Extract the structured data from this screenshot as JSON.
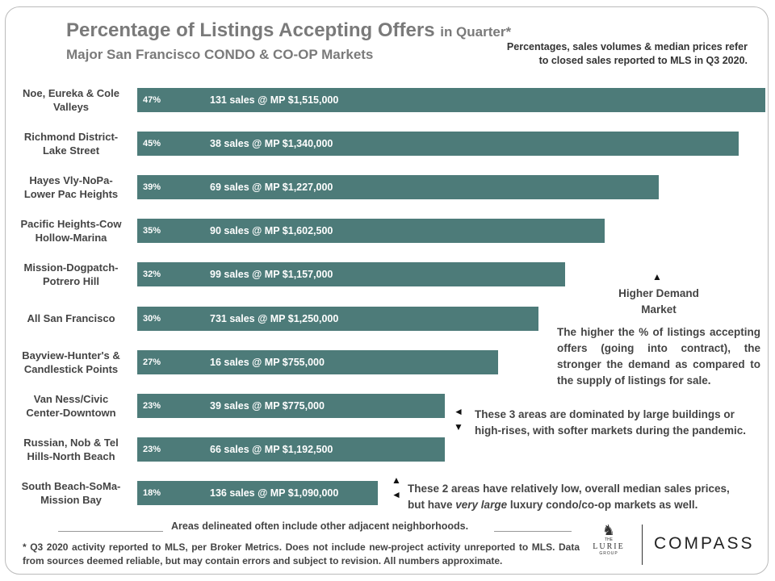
{
  "chart_data": {
    "type": "bar",
    "orientation": "horizontal",
    "title": "Percentage of Listings Accepting Offers",
    "title_suffix": "in Quarter*",
    "subtitle": "Major San Francisco CONDO & CO-OP Markets",
    "note": "Percentages, sales volumes & median prices refer to closed sales reported to MLS in Q3 2020.",
    "categories": [
      "Noe, Eureka & Cole Valleys",
      "Richmond District-Lake Street",
      "Hayes Vly-NoPa-Lower Pac Heights",
      "Pacific Heights-Cow Hollow-Marina",
      "Mission-Dogpatch-Potrero Hill",
      "All San Francisco",
      "Bayview-Hunter's & Candlestick Points",
      "Van Ness/Civic Center-Downtown",
      "Russian, Nob & Tel Hills-North Beach",
      "South Beach-SoMa-Mission Bay"
    ],
    "values": [
      47,
      45,
      39,
      35,
      32,
      30,
      27,
      23,
      23,
      18
    ],
    "value_labels": [
      "47%",
      "45%",
      "39%",
      "35%",
      "32%",
      "30%",
      "27%",
      "23%",
      "23%",
      "18%"
    ],
    "bar_notes": [
      "131 sales @ MP $1,515,000",
      "38 sales @ MP $1,340,000",
      "69 sales @ MP $1,227,000",
      "90 sales @ MP $1,602,500",
      "99 sales @ MP $1,157,000",
      "731 sales @ MP $1,250,000",
      "16 sales @ MP $755,000",
      "39 sales @ MP $775,000",
      "66 sales @ MP $1,192,500",
      "136 sales @ MP $1,090,000"
    ],
    "color": "#4d7b79",
    "xlim": [
      0,
      47
    ],
    "demand_label": "Higher Demand Market",
    "demand_text": "The higher the % of listings accepting offers (going into contract), the stronger the demand as compared to the supply of listings for sale.",
    "three_areas": "These 3 areas are dominated by large buildings or high-rises, with softer markets during the pandemic.",
    "two_areas_1": "These 2 areas have relatively low, overall median sales prices,",
    "two_areas_2": "but have",
    "two_areas_3": "very large",
    "two_areas_4": "luxury condo/co-op markets as well.",
    "delineation": "Areas delineated often include other adjacent neighborhoods.",
    "footnote": "* Q3 2020 activity reported to MLS, per Broker Metrics. Does not include new-project activity unreported to MLS. Data from sources deemed reliable, but may contain errors and subject to revision. All numbers approximate.",
    "logo_1_top": "THE",
    "logo_1_main": "LURIE",
    "logo_1_bottom": "GROUP",
    "logo_2": "COMPASS"
  }
}
